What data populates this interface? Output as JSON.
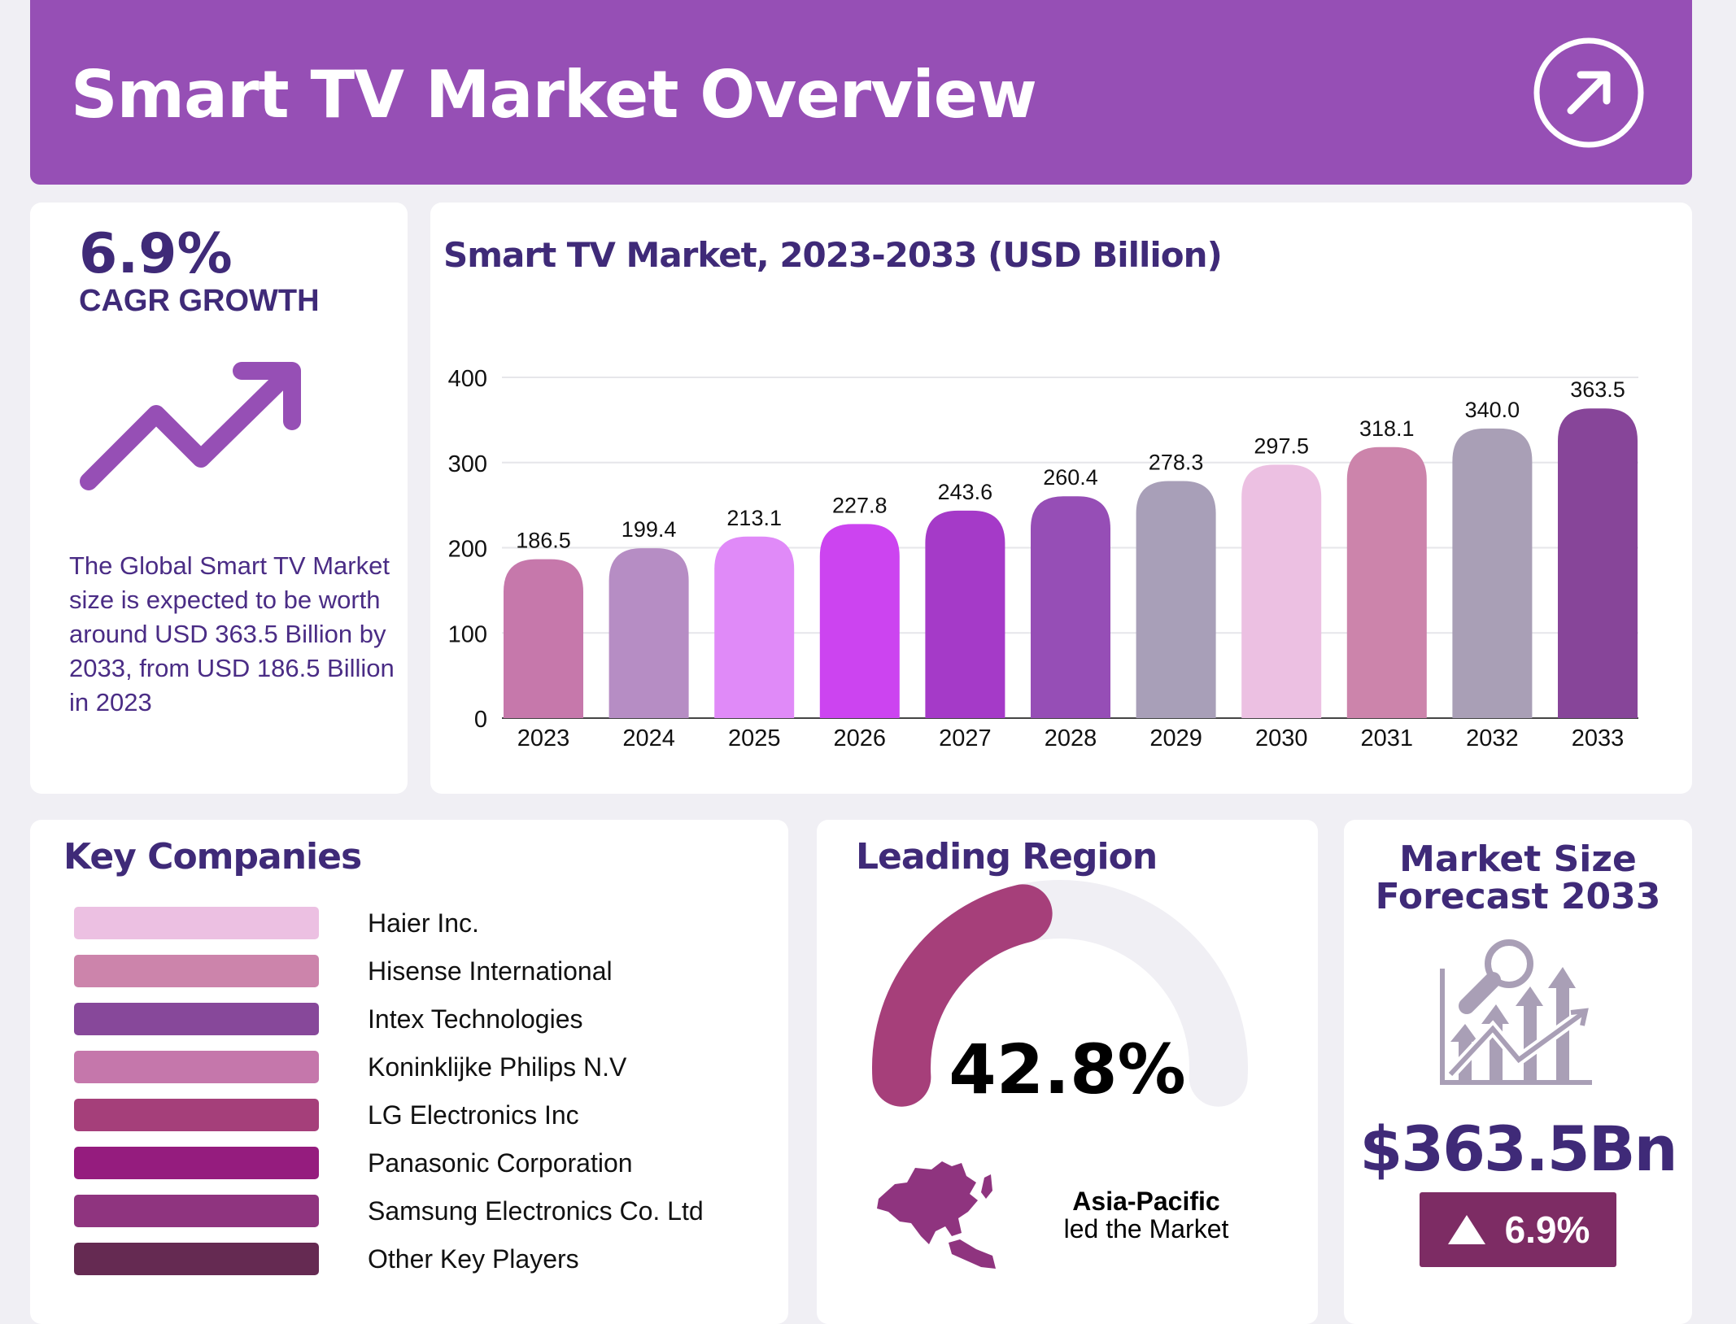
{
  "header": {
    "title": "Smart TV Market Overview",
    "icon": "arrow-up-right-circle-icon"
  },
  "cagr": {
    "value": "6.9%",
    "label": "CAGR GROWTH",
    "icon": "trend-up-arrow-icon",
    "description": "The Global Smart TV Market size is expected to be worth around USD 363.5 Billion by 2033, from USD 186.5 Billion in 2023"
  },
  "chart_data": {
    "type": "bar",
    "title": "Smart TV Market, 2023-2033 (USD Billion)",
    "xlabel": "",
    "ylabel": "",
    "categories": [
      "2023",
      "2024",
      "2025",
      "2026",
      "2027",
      "2028",
      "2029",
      "2030",
      "2031",
      "2032",
      "2033"
    ],
    "values": [
      186.5,
      199.4,
      213.1,
      227.8,
      243.6,
      260.4,
      278.3,
      297.5,
      318.1,
      340.0,
      363.5
    ],
    "value_labels": [
      "186.5",
      "199.4",
      "213.1",
      "227.8",
      "243.6",
      "260.4",
      "278.3",
      "297.5",
      "318.1",
      "340.0",
      "363.5"
    ],
    "colors": [
      "#c678ab",
      "#b68dc4",
      "#e08af8",
      "#cc44f0",
      "#a53ac8",
      "#964eb6",
      "#a89fb8",
      "#ecc0e2",
      "#cc84ab",
      "#a99fb6",
      "#874599"
    ],
    "ylim": [
      0,
      400
    ],
    "yticks": [
      "0",
      "100",
      "200",
      "300",
      "400"
    ],
    "grid": true
  },
  "companies": {
    "title": "Key Companies",
    "items": [
      {
        "label": "Haier Inc.",
        "color": "#ecc0e2"
      },
      {
        "label": "Hisense International",
        "color": "#cc84ab"
      },
      {
        "label": "Intex Technologies",
        "color": "#87489a"
      },
      {
        "label": "Koninklijke Philips N.V",
        "color": "#c577ab"
      },
      {
        "label": "LG Electronics Inc",
        "color": "#a53f7a"
      },
      {
        "label": "Panasonic Corporation",
        "color": "#951c7e"
      },
      {
        "label": "Samsung Electronics Co. Ltd",
        "color": "#8f347f"
      },
      {
        "label": "Other Key Players",
        "color": "#652a52"
      }
    ]
  },
  "region": {
    "title": "Leading Region",
    "share_value": "42.8%",
    "share_fraction": 0.428,
    "gauge_color": "#a63f7a",
    "name": "Asia-Pacific",
    "subtitle": "led the Market",
    "map_icon": "asia-pacific-map-icon"
  },
  "forecast": {
    "title_line1": "Market Size",
    "title_line2": "Forecast 2033",
    "icon": "market-analysis-chart-icon",
    "value": "$363.5Bn",
    "badge_icon": "triangle-up-icon",
    "badge_value": "6.9%"
  },
  "colors": {
    "header": "#964fb5",
    "text_accent": "#3f2a78",
    "background": "#f0eff4",
    "badge": "#7d2c64"
  }
}
